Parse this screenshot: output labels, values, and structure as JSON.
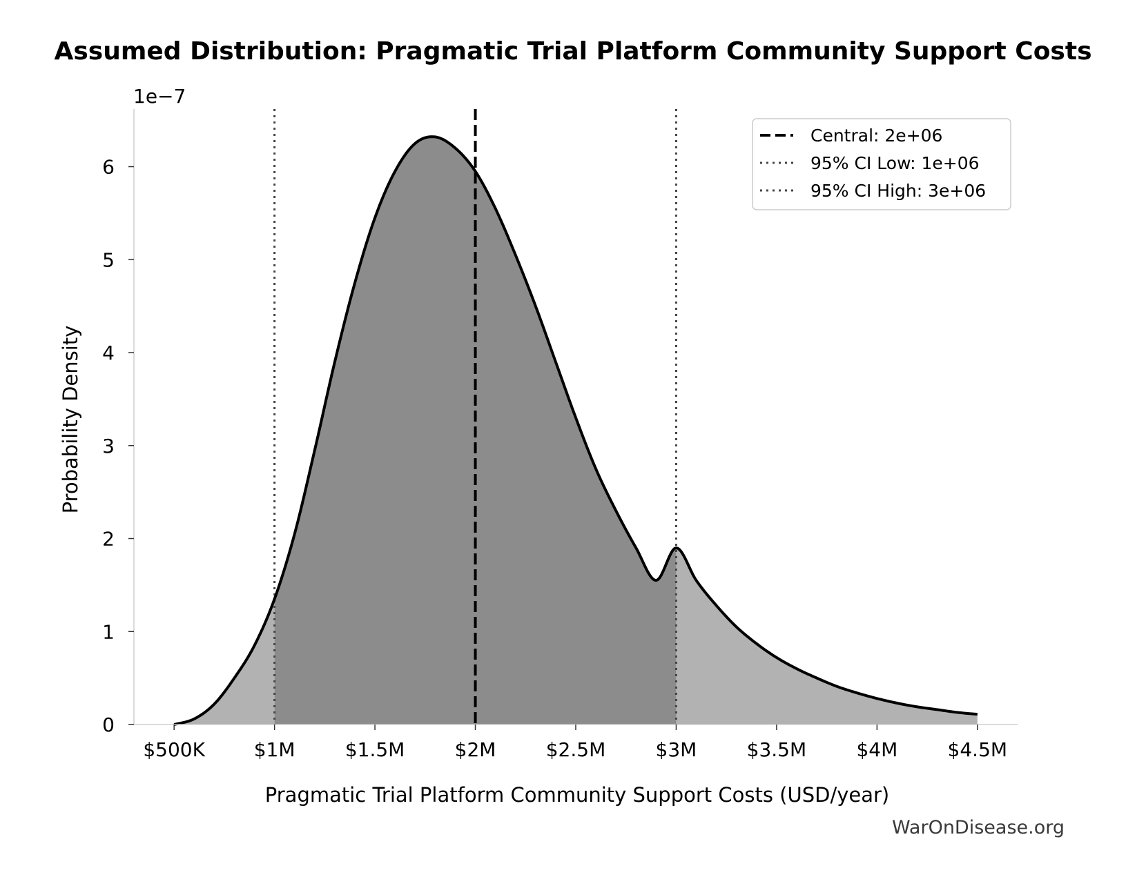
{
  "chart_data": {
    "type": "area",
    "title": "Assumed Distribution: Pragmatic Trial Platform Community Support Costs",
    "xlabel": "Pragmatic Trial Platform Community Support Costs (USD/year)",
    "ylabel": "Probability Density",
    "y_scale_label": "1e−7",
    "xlim": [
      300000,
      4700000
    ],
    "ylim": [
      0,
      6.62
    ],
    "x_ticks": [
      {
        "value": 500000,
        "label": "$500K"
      },
      {
        "value": 1000000,
        "label": "$1M"
      },
      {
        "value": 1500000,
        "label": "$1.5M"
      },
      {
        "value": 2000000,
        "label": "$2M"
      },
      {
        "value": 2500000,
        "label": "$2.5M"
      },
      {
        "value": 3000000,
        "label": "$3M"
      },
      {
        "value": 3500000,
        "label": "$3.5M"
      },
      {
        "value": 4000000,
        "label": "$4M"
      },
      {
        "value": 4500000,
        "label": "$4.5M"
      }
    ],
    "y_ticks": [
      {
        "value": 0,
        "label": "0"
      },
      {
        "value": 1,
        "label": "1"
      },
      {
        "value": 2,
        "label": "2"
      },
      {
        "value": 3,
        "label": "3"
      },
      {
        "value": 4,
        "label": "4"
      },
      {
        "value": 5,
        "label": "5"
      },
      {
        "value": 6,
        "label": "6"
      }
    ],
    "series": [
      {
        "x": [
          500000,
          600000,
          700000,
          800000,
          900000,
          1000000,
          1100000,
          1200000,
          1300000,
          1400000,
          1500000,
          1600000,
          1700000,
          1800000,
          1900000,
          2000000,
          2100000,
          2200000,
          2300000,
          2400000,
          2500000,
          2600000,
          2700000,
          2800000,
          2900000,
          3000000,
          3100000,
          3200000,
          3300000,
          3400000,
          3500000,
          3600000,
          3700000,
          3800000,
          3900000,
          4000000,
          4100000,
          4200000,
          4300000,
          4400000,
          4500000
        ],
        "y": [
          0.0,
          0.06,
          0.22,
          0.5,
          0.85,
          1.35,
          2.05,
          2.95,
          3.9,
          4.75,
          5.45,
          5.95,
          6.25,
          6.32,
          6.2,
          5.95,
          5.55,
          5.05,
          4.5,
          3.9,
          3.3,
          2.75,
          2.3,
          1.9,
          1.55,
          1.9,
          1.55,
          1.28,
          1.05,
          0.87,
          0.72,
          0.6,
          0.5,
          0.41,
          0.34,
          0.28,
          0.23,
          0.19,
          0.16,
          0.13,
          0.11
        ]
      }
    ],
    "ci_low": 1000000,
    "ci_high": 3000000,
    "central": 2000000,
    "legend": {
      "position": "top-right",
      "entries": [
        {
          "label": "Central: 2e+06",
          "style": "dashed"
        },
        {
          "label": "95% CI Low: 1e+06",
          "style": "dotted"
        },
        {
          "label": "95% CI High: 3e+06",
          "style": "dotted"
        }
      ]
    },
    "colors": {
      "ci_fill": "#8c8c8c",
      "tail_fill": "#b2b2b2",
      "curve": "#000000",
      "ci_line": "#444444"
    },
    "grid": false
  },
  "watermark": "WarOnDisease.org"
}
